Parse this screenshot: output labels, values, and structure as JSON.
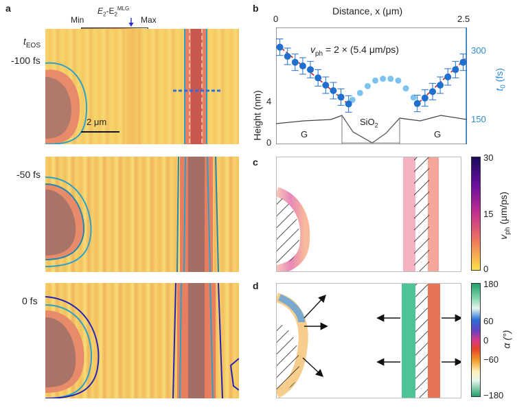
{
  "panel_letters": {
    "a": "a",
    "b": "b",
    "c": "c",
    "d": "d"
  },
  "panel_a": {
    "t_label_main": "t",
    "t_label_sub": "EOS",
    "times": [
      "-100 fs",
      "-50 fs",
      "0 fs"
    ],
    "colorbar": {
      "min": "Min",
      "max": "Max",
      "title_main": "E",
      "title_sub2": "2",
      "title_dash": "-E",
      "title_sub_mlg": "2",
      "title_sup": "MLG"
    },
    "scalebar": "2 μm"
  },
  "panel_b": {
    "top_axis_label": "Distance, x (μm)",
    "top_ticks": [
      "0",
      "2.5"
    ],
    "left_axis_label": "Height (nm)",
    "left_ticks": [
      "0",
      "4"
    ],
    "right_axis_label": "t",
    "right_axis_sub": "0",
    "right_axis_unit": " (fs)",
    "right_ticks": [
      "300",
      "150"
    ],
    "velocity_text": "v",
    "velocity_sub": "ph",
    "velocity_value": " = 2 × (5.4 μm/ps)",
    "region_labels": [
      "G",
      "SiO",
      "G"
    ],
    "region_sub": "2",
    "colors": {
      "dark_series": "#1e6fd0",
      "light_series": "#7ec3ef",
      "fit": "#d0201e",
      "axis_right": "#2a8bd6"
    }
  },
  "panel_c": {
    "colorbar_label": "v",
    "colorbar_sub": "ph",
    "colorbar_unit": " (μm/ps)",
    "ticks": [
      "30",
      "15",
      "0"
    ]
  },
  "panel_d": {
    "colorbar_label": "α (°)",
    "ticks": [
      "180",
      "60",
      "0",
      "−60",
      "−180"
    ]
  },
  "chart_data": {
    "type": "scatter",
    "x_axis": {
      "label": "Distance, x (μm)",
      "range": [
        0,
        2.5
      ]
    },
    "y_axis_right": {
      "label": "t0 (fs)",
      "ticks": [
        150,
        300
      ]
    },
    "y_axis_left": {
      "label": "Height (nm)",
      "ticks": [
        0,
        4
      ]
    },
    "annotation": "vph = 2 × (5.4 μm/ps)",
    "series": [
      {
        "x": [
          0.05,
          0.15,
          0.25,
          0.35,
          0.45,
          0.55,
          0.65,
          0.75,
          0.85,
          0.95,
          1.85,
          1.95,
          2.05,
          2.15,
          2.25,
          2.35,
          2.45
        ],
        "y": [
          305,
          285,
          272,
          264,
          256,
          238,
          222,
          210,
          196,
          181,
          182,
          194,
          208,
          222,
          240,
          256,
          272
        ]
      },
      {
        "x": [
          1.0,
          1.1,
          1.2,
          1.3,
          1.4,
          1.5,
          1.6,
          1.7,
          1.8
        ],
        "y": [
          190,
          205,
          220,
          232,
          236,
          236,
          232,
          215,
          195
        ]
      }
    ]
  }
}
